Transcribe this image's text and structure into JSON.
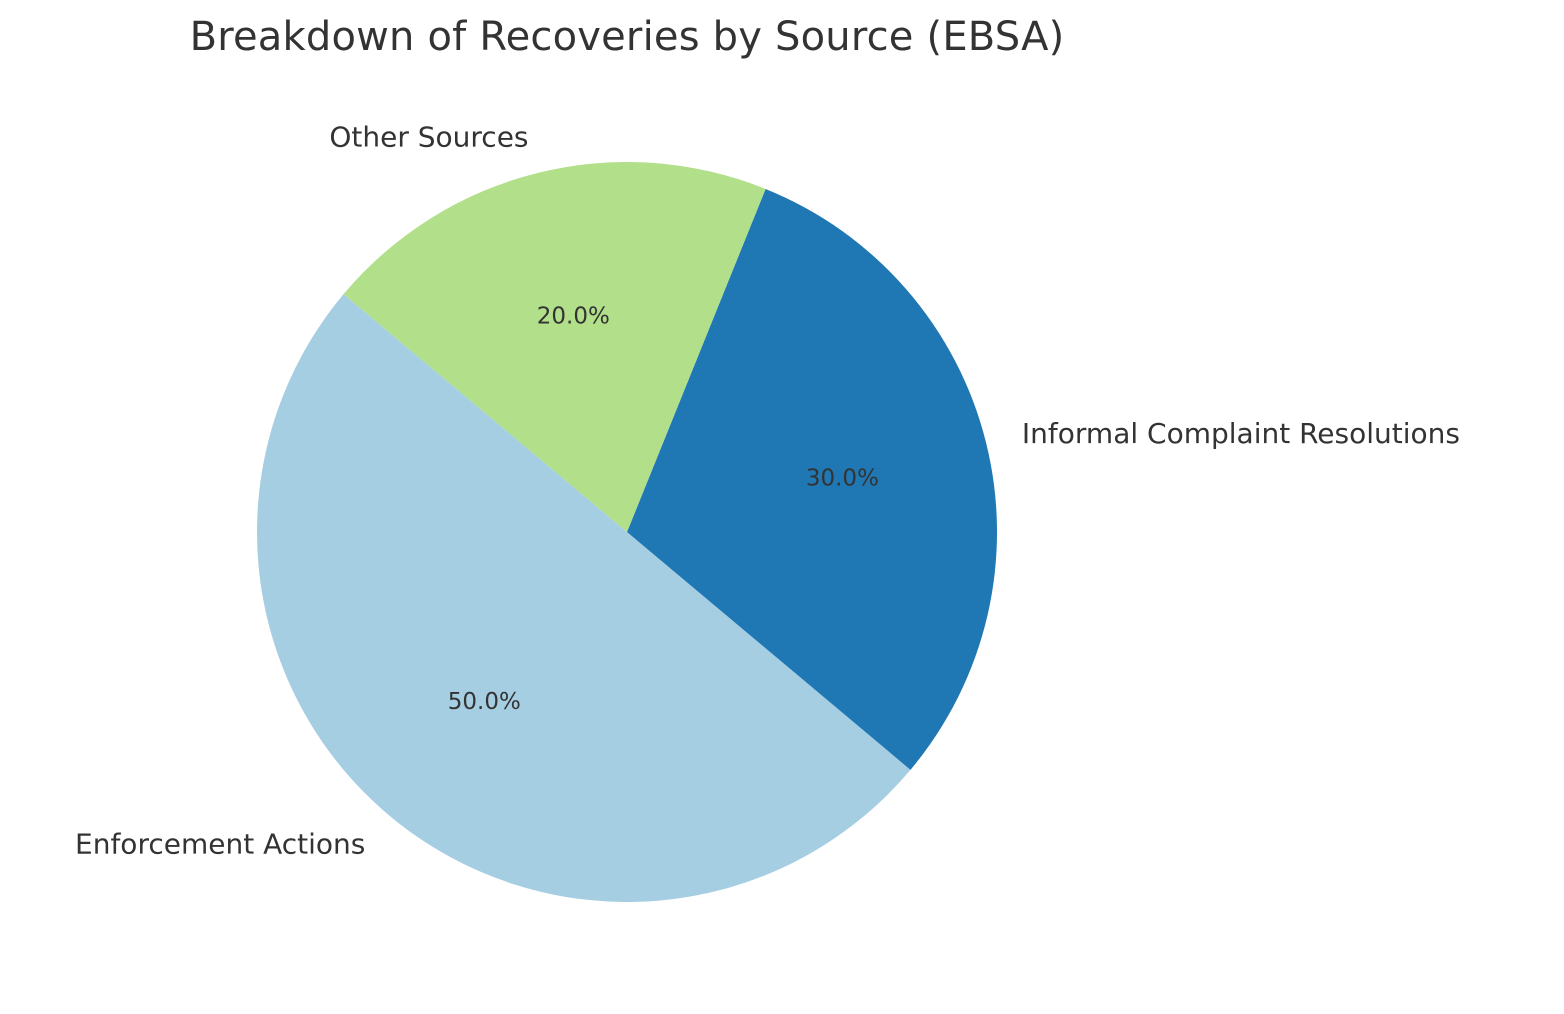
{
  "chart_data": {
    "type": "pie",
    "title": "Breakdown of Recoveries by Source (EBSA)",
    "start_angle_deg": 140,
    "direction": "counterclockwise",
    "slices": [
      {
        "label": "Enforcement Actions",
        "value": 50.0,
        "pct_label": "50.0%",
        "color": "#a6cee3"
      },
      {
        "label": "Informal Complaint Resolutions",
        "value": 30.0,
        "pct_label": "30.0%",
        "color": "#1f78b4"
      },
      {
        "label": "Other Sources",
        "value": 20.0,
        "pct_label": "20.0%",
        "color": "#b2df8a"
      }
    ]
  }
}
